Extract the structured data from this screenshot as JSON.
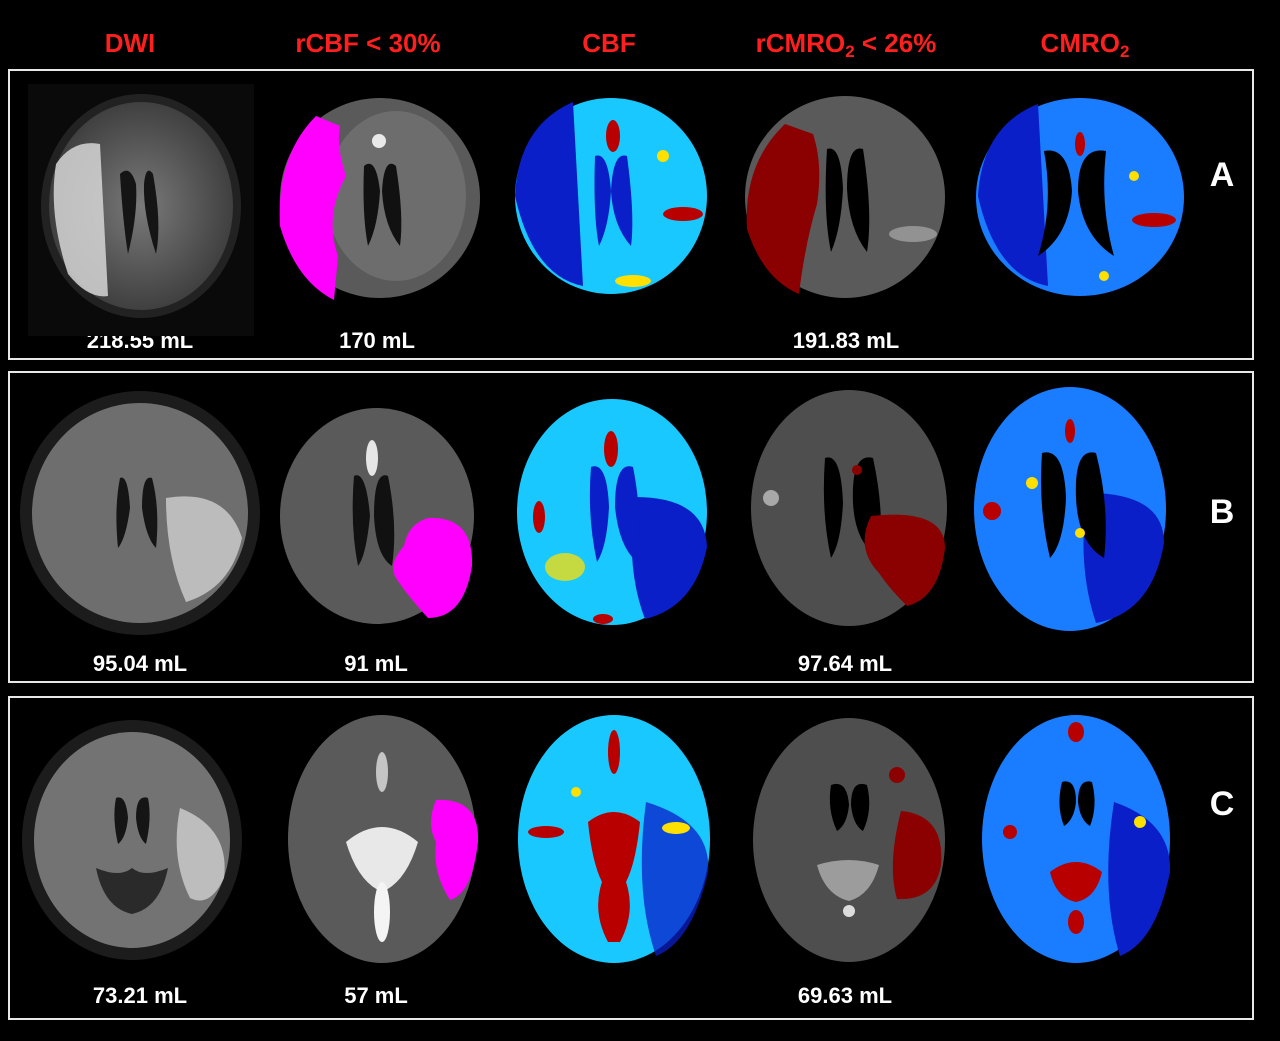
{
  "columns": {
    "dwi": "DWI",
    "rcbf": "rCBF < 30%",
    "cbf": "CBF",
    "rcmro2_pre": "rCMRO",
    "rcmro2_sub": "2",
    "rcmro2_post": " < 26%",
    "cmro2_pre": "CMRO",
    "cmro2_sub": "2"
  },
  "rows": [
    {
      "letter": "A",
      "dwi_volume": "218.55 mL",
      "rcbf_volume": "170 mL",
      "rcmro2_volume": "191.83 mL"
    },
    {
      "letter": "B",
      "dwi_volume": "95.04 mL",
      "rcbf_volume": "91 mL",
      "rcmro2_volume": "97.64 mL"
    },
    {
      "letter": "C",
      "dwi_volume": "73.21 mL",
      "rcbf_volume": "57 mL",
      "rcmro2_volume": "69.63 mL"
    }
  ],
  "colors": {
    "header": "#ff1f1f",
    "frame": "#e8e8e8",
    "rcbf_lesion": "#ff00ff",
    "rcmro2_lesion": "#8b0000",
    "map_low": "#0a1fc8",
    "map_mid": "#19c8ff",
    "map_high": "#ffe000",
    "map_peak": "#b80000"
  }
}
